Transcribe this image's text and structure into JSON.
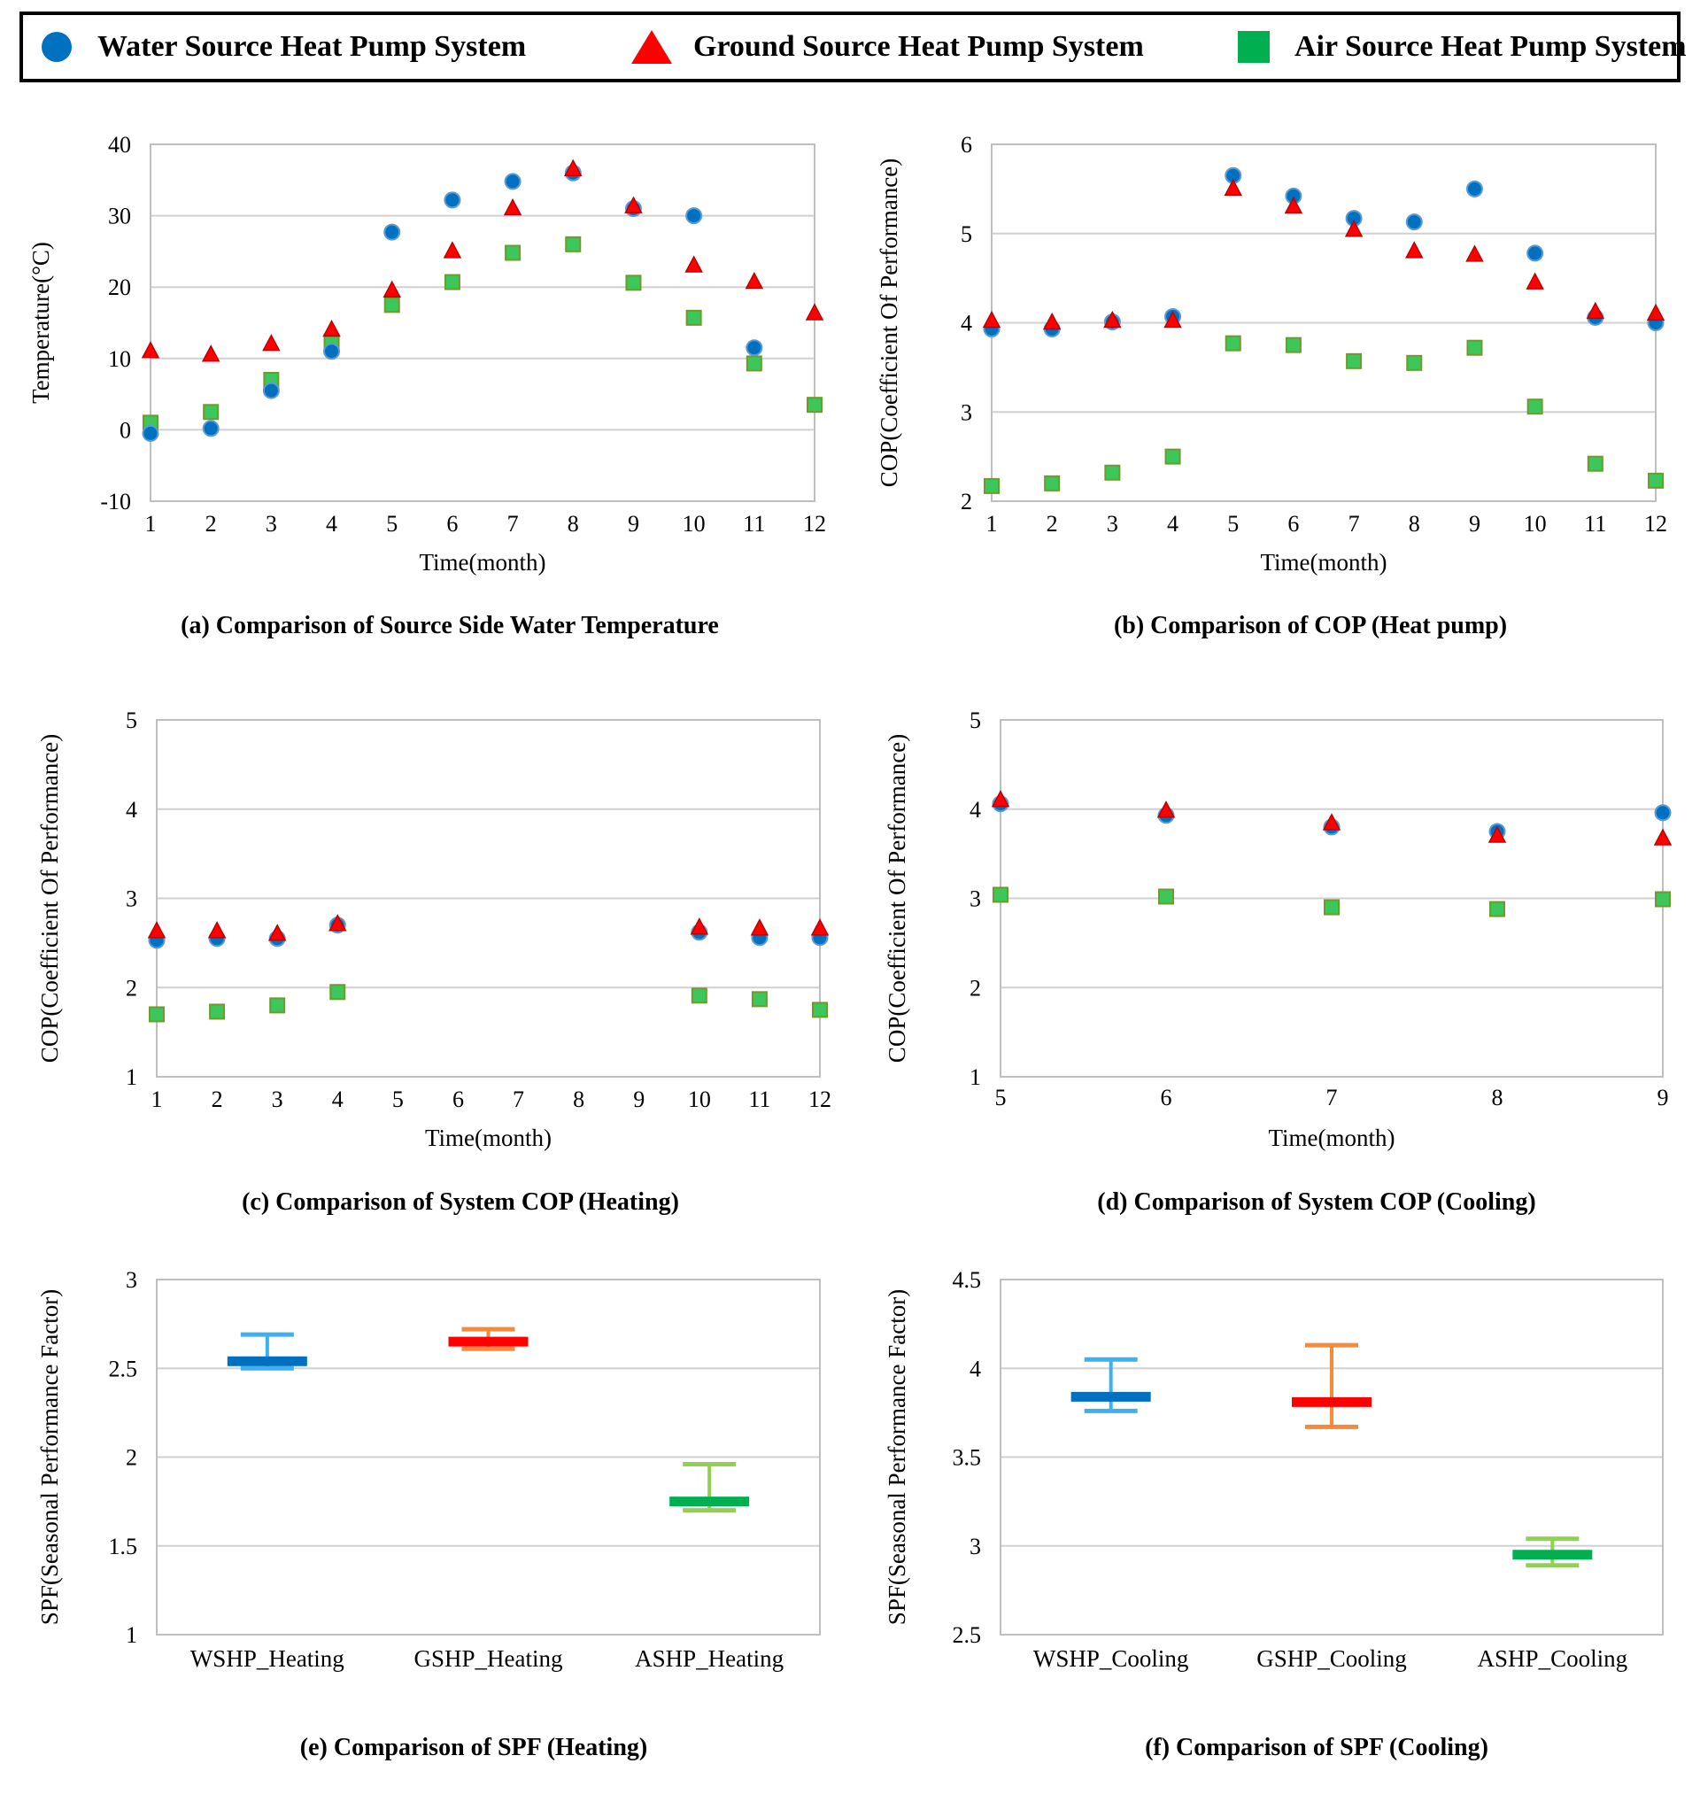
{
  "legend": {
    "wshp": {
      "label": "Water Source Heat Pump System",
      "icon": "circle",
      "color": "#0070C0"
    },
    "gshp": {
      "label": "Ground Source Heat Pump System",
      "icon": "triangle",
      "color": "#FF0000"
    },
    "ashp": {
      "label": "Air Source Heat Pump System",
      "icon": "square",
      "color": "#00B050"
    }
  },
  "chart_data": [
    {
      "id": "a",
      "type": "scatter",
      "title": "(a) Comparison of Source Side Water Temperature",
      "xlabel": "Time(month)",
      "ylabel": "Temperature(°C)",
      "x": [
        1,
        2,
        3,
        4,
        5,
        6,
        7,
        8,
        9,
        10,
        11,
        12
      ],
      "xlim": [
        1,
        12
      ],
      "ylim": [
        -10,
        40
      ],
      "yticks": [
        -10,
        0,
        10,
        20,
        30,
        40
      ],
      "xticks": [
        "1",
        "2",
        "3",
        "4",
        "5",
        "6",
        "7",
        "8",
        "9",
        "10",
        "11",
        "12"
      ],
      "series": [
        {
          "name": "Water Source Heat Pump System",
          "marker": "circle",
          "values": [
            -0.5,
            0.2,
            5.5,
            11,
            27.7,
            32.2,
            34.8,
            36,
            31,
            30,
            11.5,
            null
          ]
        },
        {
          "name": "Ground Source Heat Pump System",
          "marker": "triangle",
          "values": [
            11,
            10.5,
            12,
            14,
            19.5,
            25,
            31,
            36.5,
            31.3,
            23,
            20.7,
            16.3
          ]
        },
        {
          "name": "Air Source Heat Pump System",
          "marker": "square",
          "values": [
            1,
            2.5,
            7,
            12.3,
            17.5,
            20.7,
            24.8,
            26,
            20.6,
            15.7,
            9.3,
            3.5
          ]
        }
      ]
    },
    {
      "id": "b",
      "type": "scatter",
      "title": "(b) Comparison of COP (Heat pump)",
      "xlabel": "Time(month)",
      "ylabel": "COP(Coefficient Of Performance)",
      "x": [
        1,
        2,
        3,
        4,
        5,
        6,
        7,
        8,
        9,
        10,
        11,
        12
      ],
      "xlim": [
        1,
        12
      ],
      "ylim": [
        2,
        6
      ],
      "yticks": [
        2,
        3,
        4,
        5,
        6
      ],
      "xticks": [
        "1",
        "2",
        "3",
        "4",
        "5",
        "6",
        "7",
        "8",
        "9",
        "10",
        "11",
        "12"
      ],
      "series": [
        {
          "name": "Water Source Heat Pump System",
          "marker": "circle",
          "values": [
            3.93,
            3.93,
            4.01,
            4.07,
            5.65,
            5.42,
            5.17,
            5.13,
            5.5,
            4.78,
            4.06,
            4.0
          ]
        },
        {
          "name": "Ground Source Heat Pump System",
          "marker": "triangle",
          "values": [
            4.02,
            4.0,
            4.02,
            4.02,
            5.5,
            5.3,
            5.04,
            4.8,
            4.76,
            4.45,
            4.12,
            4.1
          ]
        },
        {
          "name": "Air Source Heat Pump System",
          "marker": "square",
          "values": [
            2.17,
            2.2,
            2.32,
            2.5,
            3.77,
            3.75,
            3.57,
            3.55,
            3.72,
            3.06,
            2.42,
            2.23
          ]
        }
      ]
    },
    {
      "id": "c",
      "type": "scatter",
      "title": "(c) Comparison of System COP (Heating)",
      "xlabel": "Time(month)",
      "ylabel": "COP(Coefficient Of Performance)",
      "x": [
        1,
        2,
        3,
        4,
        5,
        6,
        7,
        8,
        9,
        10,
        11,
        12
      ],
      "xlim": [
        1,
        12
      ],
      "ylim": [
        1,
        5
      ],
      "yticks": [
        1,
        2,
        3,
        4,
        5
      ],
      "xticks": [
        "1",
        "2",
        "3",
        "4",
        "5",
        "6",
        "7",
        "8",
        "9",
        "10",
        "11",
        "12"
      ],
      "series": [
        {
          "name": "Water Source Heat Pump System",
          "marker": "circle",
          "values": [
            2.53,
            2.55,
            2.55,
            2.7,
            null,
            null,
            null,
            null,
            null,
            2.62,
            2.56,
            2.56
          ]
        },
        {
          "name": "Ground Source Heat Pump System",
          "marker": "triangle",
          "values": [
            2.63,
            2.63,
            2.6,
            2.71,
            null,
            null,
            null,
            null,
            null,
            2.67,
            2.66,
            2.66
          ]
        },
        {
          "name": "Air Source Heat Pump System",
          "marker": "square",
          "values": [
            1.7,
            1.73,
            1.8,
            1.95,
            null,
            null,
            null,
            null,
            null,
            1.91,
            1.87,
            1.75
          ]
        }
      ]
    },
    {
      "id": "d",
      "type": "scatter",
      "title": "(d) Comparison of System COP (Cooling)",
      "xlabel": "Time(month)",
      "ylabel": "COP(Coefficient Of Performance)",
      "x": [
        5,
        6,
        7,
        8,
        9
      ],
      "xlim": [
        5,
        9
      ],
      "ylim": [
        1,
        5
      ],
      "yticks": [
        1,
        2,
        3,
        4,
        5
      ],
      "xticks": [
        "5",
        "6",
        "7",
        "8",
        "9"
      ],
      "series": [
        {
          "name": "Water Source Heat Pump System",
          "marker": "circle",
          "values": [
            4.06,
            3.93,
            3.8,
            3.75,
            3.96
          ]
        },
        {
          "name": "Ground Source Heat Pump System",
          "marker": "triangle",
          "values": [
            4.1,
            3.98,
            3.84,
            3.7,
            3.67
          ]
        },
        {
          "name": "Air Source Heat Pump System",
          "marker": "square",
          "values": [
            3.04,
            3.02,
            2.9,
            2.88,
            2.99
          ]
        }
      ]
    },
    {
      "id": "e",
      "type": "errorbar",
      "title": "(e) Comparison of SPF (Heating)",
      "xlabel": "",
      "ylabel": "SPF(Seasonal Performance Factor)",
      "ylim": [
        1,
        3
      ],
      "yticks": [
        "1",
        "1.5",
        "2",
        "2.5",
        "3"
      ],
      "ytick_values": [
        1,
        1.5,
        2,
        2.5,
        3
      ],
      "categories": [
        "WSHP_Heating",
        "GSHP_Heating",
        "ASHP_Heating"
      ],
      "values": [
        2.54,
        2.65,
        1.75
      ],
      "upper": [
        2.69,
        2.72,
        1.96
      ],
      "lower": [
        2.5,
        2.61,
        1.7
      ],
      "colors": [
        "#0070C0",
        "#FF0000",
        "#00B050"
      ],
      "cap_colors": [
        "#3BB2EB",
        "#F58A3A",
        "#92D050"
      ]
    },
    {
      "id": "f",
      "type": "errorbar",
      "title": "(f) Comparison of SPF (Cooling)",
      "xlabel": "",
      "ylabel": "SPF(Seasonal Performance Factor)",
      "ylim": [
        2.5,
        4.5
      ],
      "yticks": [
        "2.5",
        "3",
        "3.5",
        "4",
        "4.5"
      ],
      "ytick_values": [
        2.5,
        3,
        3.5,
        4,
        4.5
      ],
      "categories": [
        "WSHP_Cooling",
        "GSHP_Cooling",
        "ASHP_Cooling"
      ],
      "values": [
        3.84,
        3.81,
        2.95
      ],
      "upper": [
        4.05,
        4.13,
        3.04
      ],
      "lower": [
        3.76,
        3.67,
        2.89
      ],
      "colors": [
        "#0070C0",
        "#FF0000",
        "#00B050"
      ],
      "cap_colors": [
        "#3BB2EB",
        "#F58A3A",
        "#92D050"
      ]
    }
  ]
}
